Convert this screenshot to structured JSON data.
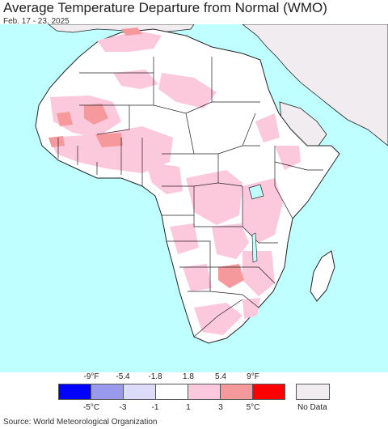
{
  "header": {
    "title": "Average Temperature Departure from Normal (WMO)",
    "subtitle": "Feb. 17 - 23, 2025"
  },
  "map": {
    "colors": {
      "ocean": "#bfffff",
      "land": "#ffffff",
      "no_data": "#f0ecef",
      "border": "#222222",
      "lake": "#bfffff",
      "anomaly_1_3": "#fcc8dc",
      "anomaly_3_5": "#f6999c"
    }
  },
  "legend": {
    "fahrenheit_labels": [
      "-9°F",
      "-5.4",
      "-1.8",
      "1.8",
      "5.4",
      "9°F"
    ],
    "celsius_labels": [
      "-5°C",
      "-3",
      "-1",
      "1",
      "3",
      "5°C"
    ],
    "bins": [
      {
        "color": "#0000ff"
      },
      {
        "color": "#9999ee"
      },
      {
        "color": "#dcdcf8"
      },
      {
        "color": "#ffffff"
      },
      {
        "color": "#fcc8dc"
      },
      {
        "color": "#f6999c"
      },
      {
        "color": "#ff0000"
      }
    ],
    "no_data_label": "No Data",
    "no_data_color": "#f0ecef"
  },
  "footer": {
    "source": "Source: World Meteorological Organization"
  }
}
